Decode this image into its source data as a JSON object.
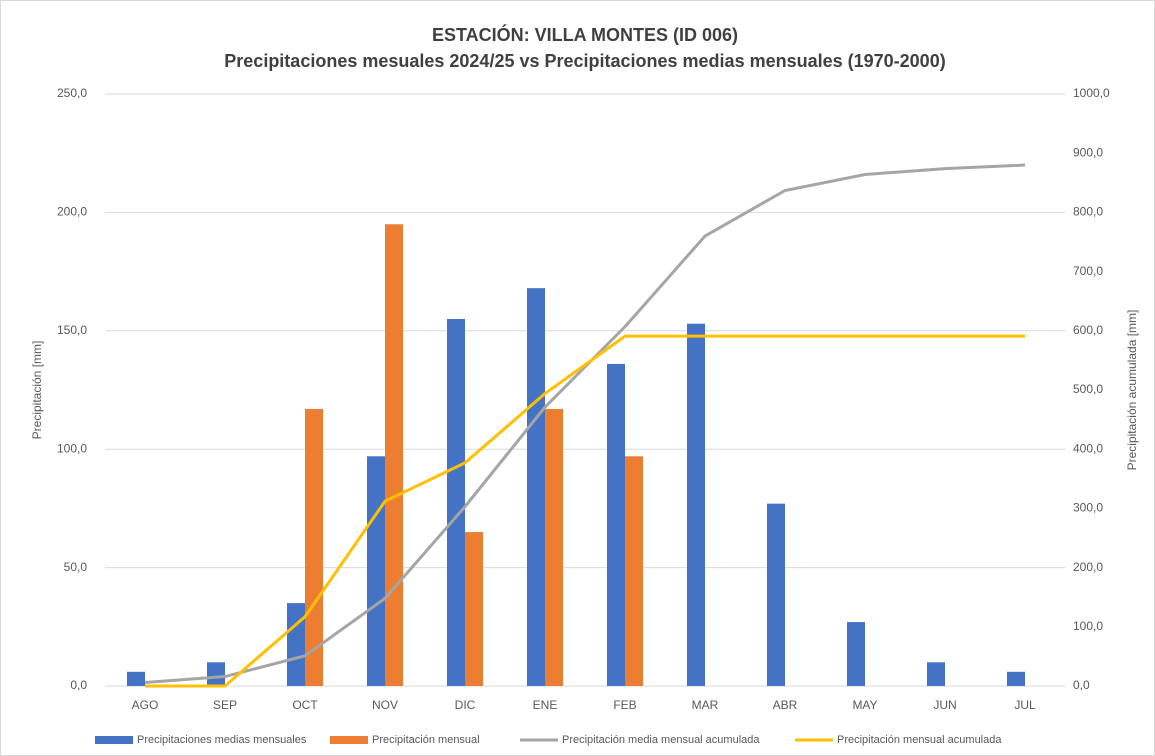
{
  "chart_data": {
    "type": "bar_line",
    "title": "ESTACIÓN: VILLA MONTES (ID 006)",
    "subtitle": "Precipitaciones mesuales 2024/25 vs Precipitaciones medias mensuales (1970-2000)",
    "ylabel": "Precipitación [mm]",
    "y2label": "Precipitación acumulada [mm]",
    "categories": [
      "AGO",
      "SEP",
      "OCT",
      "NOV",
      "DIC",
      "ENE",
      "FEB",
      "MAR",
      "ABR",
      "MAY",
      "JUN",
      "JUL"
    ],
    "series": [
      {
        "name": "Precipitaciones medias mensuales",
        "kind": "bar",
        "color": "#4472c4",
        "values": [
          6,
          10,
          35,
          97,
          155,
          168,
          136,
          153,
          77,
          27,
          10,
          6
        ]
      },
      {
        "name": "Precipitación mensual",
        "kind": "bar",
        "color": "#ed7d31",
        "values": [
          0,
          0,
          117,
          195,
          65,
          117,
          97,
          null,
          null,
          null,
          null,
          null
        ]
      },
      {
        "name": "Precipitación media mensual acumulada",
        "kind": "line",
        "axis": "y2",
        "color": "#a5a5a5",
        "values": [
          6,
          16,
          51,
          148,
          303,
          471,
          607,
          760,
          837,
          864,
          874,
          880
        ]
      },
      {
        "name": "Precipitación mensual acumulada",
        "kind": "line",
        "axis": "y2",
        "color": "#ffc000",
        "values": [
          0,
          0,
          117,
          312,
          377,
          494,
          591,
          591,
          591,
          591,
          591,
          591
        ]
      }
    ],
    "ylim": [
      0,
      250
    ],
    "yticks": [
      {
        "value": 0,
        "label": "0,0"
      },
      {
        "value": 50,
        "label": "50,0"
      },
      {
        "value": 100,
        "label": "100,0"
      },
      {
        "value": 150,
        "label": "150,0"
      },
      {
        "value": 200,
        "label": "200,0"
      },
      {
        "value": 250,
        "label": "250,0"
      }
    ],
    "y2lim": [
      0,
      1000
    ],
    "y2ticks": [
      {
        "value": 0,
        "label": "0,0"
      },
      {
        "value": 100,
        "label": "100,0"
      },
      {
        "value": 200,
        "label": "200,0"
      },
      {
        "value": 300,
        "label": "300,0"
      },
      {
        "value": 400,
        "label": "400,0"
      },
      {
        "value": 500,
        "label": "500,0"
      },
      {
        "value": 600,
        "label": "600,0"
      },
      {
        "value": 700,
        "label": "700,0"
      },
      {
        "value": 800,
        "label": "800,0"
      },
      {
        "value": 900,
        "label": "900,0"
      },
      {
        "value": 1000,
        "label": "1000,0"
      }
    ],
    "grid": true,
    "legend": "bottom"
  }
}
